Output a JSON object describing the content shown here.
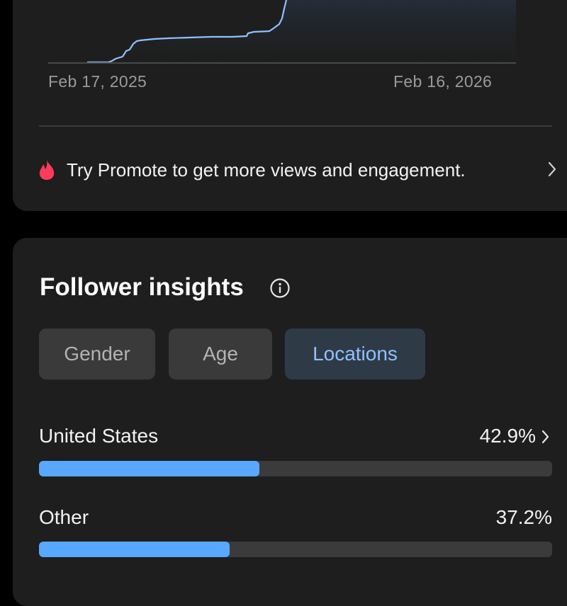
{
  "growth_chart": {
    "start_date": "Feb 17, 2025",
    "end_date": "Feb 16, 2026",
    "line_color": "#8ec1ff"
  },
  "promo": {
    "text": "Try Promote to get more views and engagement.",
    "icon": "flame-icon",
    "icon_color": "#ff3b5c"
  },
  "follower_insights": {
    "title": "Follower insights",
    "tabs": [
      {
        "label": "Gender",
        "active": false
      },
      {
        "label": "Age",
        "active": false
      },
      {
        "label": "Locations",
        "active": true
      }
    ],
    "locations": [
      {
        "name": "United States",
        "percent_label": "42.9%",
        "percent": 42.9,
        "has_chevron": true
      },
      {
        "name": "Other",
        "percent_label": "37.2%",
        "percent": 37.2,
        "has_chevron": false
      }
    ],
    "bar_color": "#59a8ff"
  }
}
